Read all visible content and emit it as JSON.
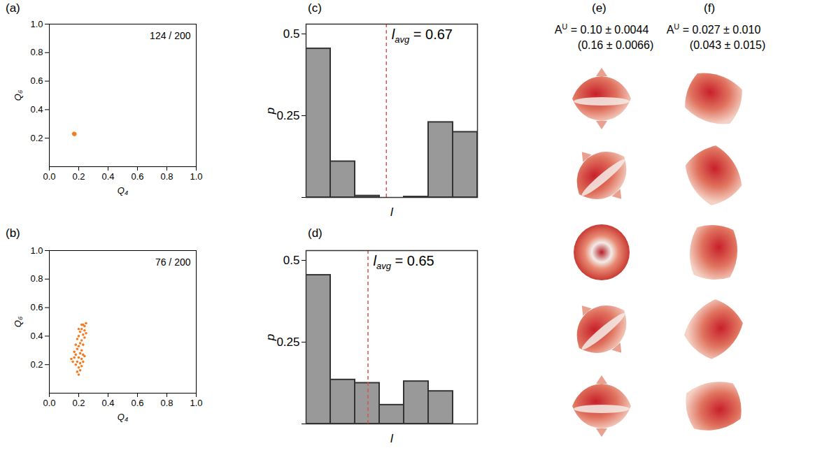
{
  "chart_data": [
    {
      "type": "scatter",
      "panel": "(a)",
      "x_label": "Q₄",
      "y_label": "Q₆",
      "annotation": "124 / 200",
      "color": "#f47b20",
      "xlim": [
        0,
        1
      ],
      "ylim": [
        0,
        1
      ],
      "xticks": [
        {
          "value": 0,
          "label": "0.0"
        },
        {
          "value": 0.2,
          "label": "0.2"
        },
        {
          "value": 0.4,
          "label": "0.4"
        },
        {
          "value": 0.6,
          "label": "0.6"
        },
        {
          "value": 0.8,
          "label": "0.8"
        },
        {
          "value": 1,
          "label": "1.0"
        }
      ],
      "yticks": [
        {
          "value": 0.2,
          "label": "0.2"
        },
        {
          "value": 0.4,
          "label": "0.4"
        },
        {
          "value": 0.6,
          "label": "0.6"
        },
        {
          "value": 0.8,
          "label": "0.8"
        },
        {
          "value": 1,
          "label": "1.0"
        }
      ],
      "x": [
        0.165,
        0.17,
        0.175,
        0.168,
        0.172,
        0.178,
        0.162,
        0.174
      ],
      "y": [
        0.225,
        0.23,
        0.235,
        0.238,
        0.222,
        0.228,
        0.232,
        0.226
      ]
    },
    {
      "type": "scatter",
      "panel": "(b)",
      "x_label": "Q₄",
      "y_label": "Q₆",
      "annotation": "76 / 200",
      "color": "#f47b20",
      "xlim": [
        0,
        1
      ],
      "ylim": [
        0,
        1
      ],
      "xticks": [
        {
          "value": 0,
          "label": "0.0"
        },
        {
          "value": 0.2,
          "label": "0.2"
        },
        {
          "value": 0.4,
          "label": "0.4"
        },
        {
          "value": 0.6,
          "label": "0.6"
        },
        {
          "value": 0.8,
          "label": "0.8"
        },
        {
          "value": 1,
          "label": "1.0"
        }
      ],
      "yticks": [
        {
          "value": 0.2,
          "label": "0.2"
        },
        {
          "value": 0.4,
          "label": "0.4"
        },
        {
          "value": 0.6,
          "label": "0.6"
        },
        {
          "value": 0.8,
          "label": "0.8"
        },
        {
          "value": 1,
          "label": "1.0"
        }
      ],
      "x": [
        0.15,
        0.16,
        0.17,
        0.17,
        0.18,
        0.18,
        0.19,
        0.19,
        0.19,
        0.19,
        0.2,
        0.2,
        0.2,
        0.2,
        0.2,
        0.21,
        0.21,
        0.21,
        0.21,
        0.21,
        0.22,
        0.22,
        0.22,
        0.22,
        0.22,
        0.23,
        0.23,
        0.23,
        0.23,
        0.23,
        0.24,
        0.24,
        0.24,
        0.24,
        0.25,
        0.25,
        0.18,
        0.2,
        0.22
      ],
      "y": [
        0.24,
        0.22,
        0.25,
        0.29,
        0.2,
        0.27,
        0.15,
        0.22,
        0.31,
        0.38,
        0.13,
        0.18,
        0.25,
        0.33,
        0.4,
        0.16,
        0.21,
        0.28,
        0.35,
        0.43,
        0.19,
        0.24,
        0.3,
        0.37,
        0.45,
        0.22,
        0.27,
        0.34,
        0.41,
        0.48,
        0.26,
        0.39,
        0.44,
        0.47,
        0.42,
        0.49,
        0.34,
        0.45,
        0.48
      ]
    },
    {
      "type": "histogram",
      "panel": "(c)",
      "x_label": "l",
      "y_label": "p",
      "color": "#999999",
      "tick_labels": "y",
      "xlim": [
        0,
        7
      ],
      "ylim": [
        0,
        0.53
      ],
      "xticks": [],
      "yticks": [
        0,
        0.25,
        0.5
      ],
      "bins": [
        0,
        1,
        2,
        3,
        4,
        5,
        6,
        7
      ],
      "counts": [
        0.455,
        0.11,
        0.005,
        0,
        0.002,
        0.23,
        0.2
      ],
      "vline": {
        "x": 3.28,
        "color": "#d9534f",
        "line_style": "dashed",
        "symbol": "l",
        "subscript": "avg",
        "relation": "=",
        "value": 0.67
      }
    },
    {
      "type": "histogram",
      "panel": "(d)",
      "x_label": "l",
      "y_label": "p",
      "color": "#999999",
      "tick_labels": "y",
      "xlim": [
        0,
        7
      ],
      "ylim": [
        0,
        0.53
      ],
      "xticks": [],
      "yticks": [
        0,
        0.25,
        0.5
      ],
      "bins": [
        0,
        1,
        2,
        3,
        4,
        5,
        6,
        7
      ],
      "counts": [
        0.455,
        0.135,
        0.125,
        0.058,
        0.13,
        0.1,
        0
      ],
      "vline": {
        "x": 2.53,
        "color": "#d9534f",
        "line_style": "dashed",
        "symbol": "l",
        "subscript": "avg",
        "relation": "=",
        "value": 0.65
      }
    }
  ],
  "images": [
    {
      "panel": "(e)",
      "symbol": "A",
      "superscript": "U",
      "line1": "= 0.10 ± 0.0044",
      "line2": "(0.16 ± 0.0066)"
    },
    {
      "panel": "(f)",
      "symbol": "A",
      "superscript": "U",
      "line1": "= 0.027 ± 0.010",
      "line2": "(0.043 ± 0.015)"
    }
  ]
}
